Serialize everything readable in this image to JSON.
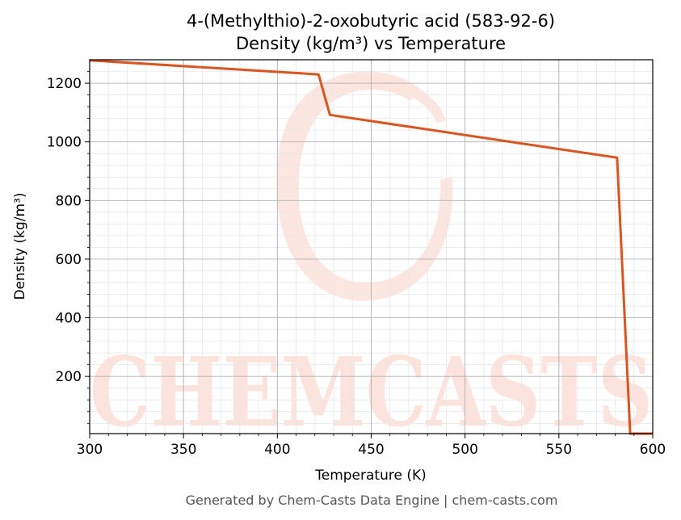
{
  "chart_data": {
    "type": "line",
    "title_line1": "4-(Methylthio)-2-oxobutyric acid (583-92-6)",
    "title_line2": "Density (kg/m³) vs Temperature",
    "xlabel": "Temperature (K)",
    "ylabel": "Density (kg/m³)",
    "xlim": [
      300,
      600
    ],
    "ylim": [
      5,
      1280
    ],
    "xticks": [
      300,
      350,
      400,
      450,
      500,
      550,
      600
    ],
    "yticks": [
      200,
      400,
      600,
      800,
      1000,
      1200
    ],
    "grid": true,
    "series": [
      {
        "color": "#d9541e",
        "x": [
          300,
          422,
          428,
          581,
          588,
          600
        ],
        "y": [
          1278,
          1230,
          1092,
          946,
          5,
          5
        ]
      }
    ],
    "watermark": "CHEMCASTS"
  },
  "footer": "Generated by Chem-Casts Data Engine | chem-casts.com"
}
